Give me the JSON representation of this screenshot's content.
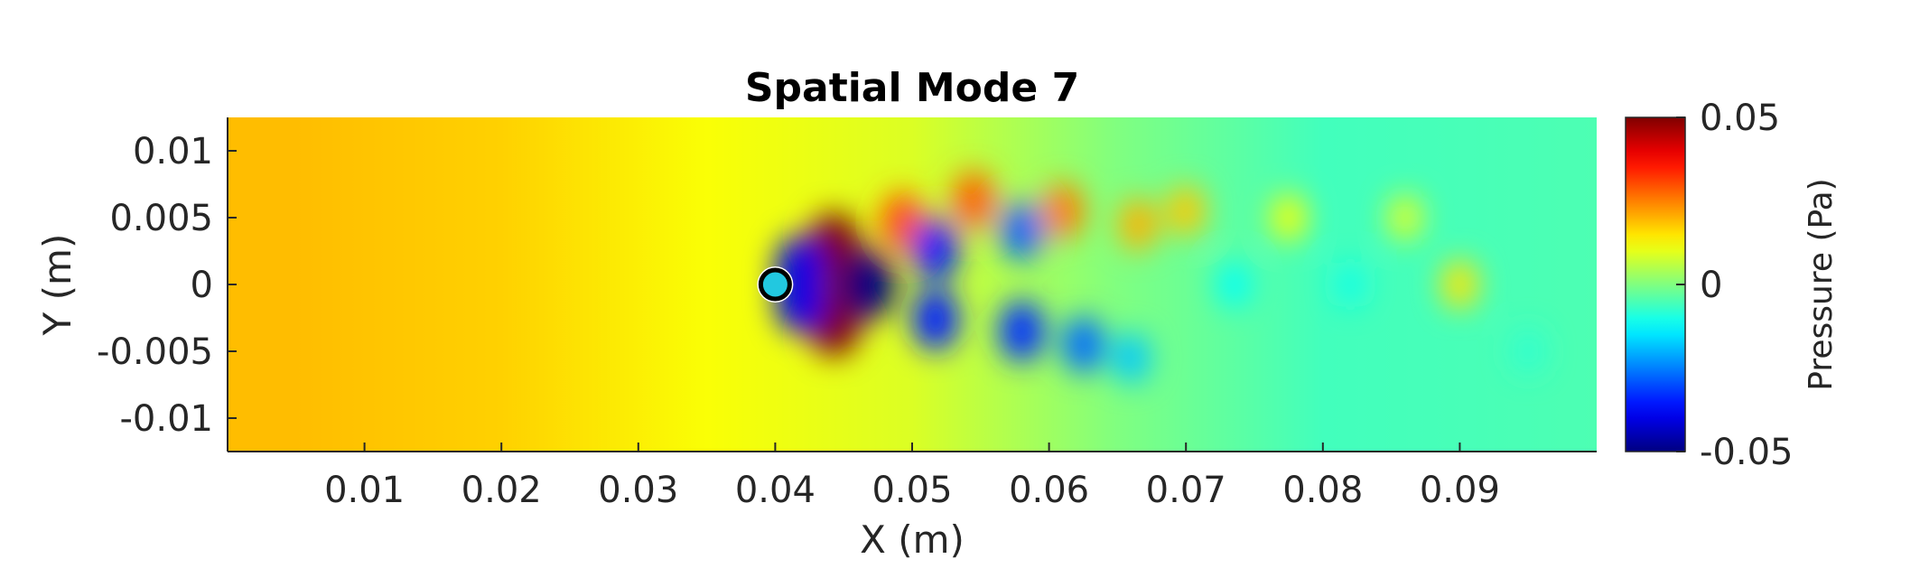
{
  "chart_data": {
    "type": "heatmap",
    "title": "Spatial Mode 7",
    "xlabel": "X (m)",
    "ylabel": "Y (m)",
    "xlim": [
      0,
      0.1
    ],
    "ylim": [
      -0.0125,
      0.0125
    ],
    "xticks": [
      0.01,
      0.02,
      0.03,
      0.04,
      0.05,
      0.06,
      0.07,
      0.08,
      0.09
    ],
    "xtick_labels": [
      "0.01",
      "0.02",
      "0.03",
      "0.04",
      "0.05",
      "0.06",
      "0.07",
      "0.08",
      "0.09"
    ],
    "yticks": [
      0.01,
      0.005,
      0,
      -0.005,
      -0.01
    ],
    "ytick_labels": [
      "0.01",
      "0.005",
      "0",
      "-0.005",
      "-0.01"
    ],
    "colorbar": {
      "label": "Pressure (Pa)",
      "colormap": "jet",
      "limits": [
        -0.05,
        0.05
      ],
      "ticks": [
        0.05,
        0,
        -0.05
      ],
      "tick_labels": [
        "0.05",
        "0",
        "-0.05"
      ]
    },
    "cylinder": {
      "x": 0.04,
      "y": 0,
      "fill": "#22c8e0",
      "stroke": "#000000"
    },
    "background_field": [
      {
        "x": 0.005,
        "value": 0.019
      },
      {
        "x": 0.02,
        "value": 0.017
      },
      {
        "x": 0.035,
        "value": 0.012
      },
      {
        "x": 0.05,
        "value": 0.009
      },
      {
        "x": 0.065,
        "value": 0.0
      },
      {
        "x": 0.08,
        "value": -0.006
      },
      {
        "x": 0.1,
        "value": -0.005
      }
    ],
    "structures": [
      {
        "x": 0.0443,
        "y": 0.0027,
        "value": 0.05
      },
      {
        "x": 0.0443,
        "y": -0.0027,
        "value": 0.05
      },
      {
        "x": 0.0418,
        "y": 0.0012,
        "value": -0.04
      },
      {
        "x": 0.0418,
        "y": -0.0012,
        "value": -0.04
      },
      {
        "x": 0.0468,
        "y": 0.0,
        "value": -0.05
      },
      {
        "x": 0.0493,
        "y": 0.0047,
        "value": 0.03
      },
      {
        "x": 0.0517,
        "y": 0.0026,
        "value": -0.035
      },
      {
        "x": 0.0517,
        "y": -0.0026,
        "value": -0.035
      },
      {
        "x": 0.0545,
        "y": 0.0063,
        "value": 0.028
      },
      {
        "x": 0.058,
        "y": 0.004,
        "value": -0.028
      },
      {
        "x": 0.058,
        "y": -0.0035,
        "value": -0.033
      },
      {
        "x": 0.061,
        "y": 0.0055,
        "value": 0.025
      },
      {
        "x": 0.0625,
        "y": -0.0045,
        "value": -0.027
      },
      {
        "x": 0.0665,
        "y": 0.0045,
        "value": 0.02
      },
      {
        "x": 0.066,
        "y": -0.0055,
        "value": -0.018
      },
      {
        "x": 0.07,
        "y": 0.0055,
        "value": 0.018
      },
      {
        "x": 0.0735,
        "y": 0.0,
        "value": -0.012
      },
      {
        "x": 0.0775,
        "y": 0.005,
        "value": 0.012
      },
      {
        "x": 0.082,
        "y": 0.0,
        "value": -0.01
      },
      {
        "x": 0.09,
        "y": 0.0,
        "value": 0.015
      },
      {
        "x": 0.086,
        "y": 0.005,
        "value": 0.01
      },
      {
        "x": 0.095,
        "y": -0.005,
        "value": -0.008
      }
    ]
  }
}
